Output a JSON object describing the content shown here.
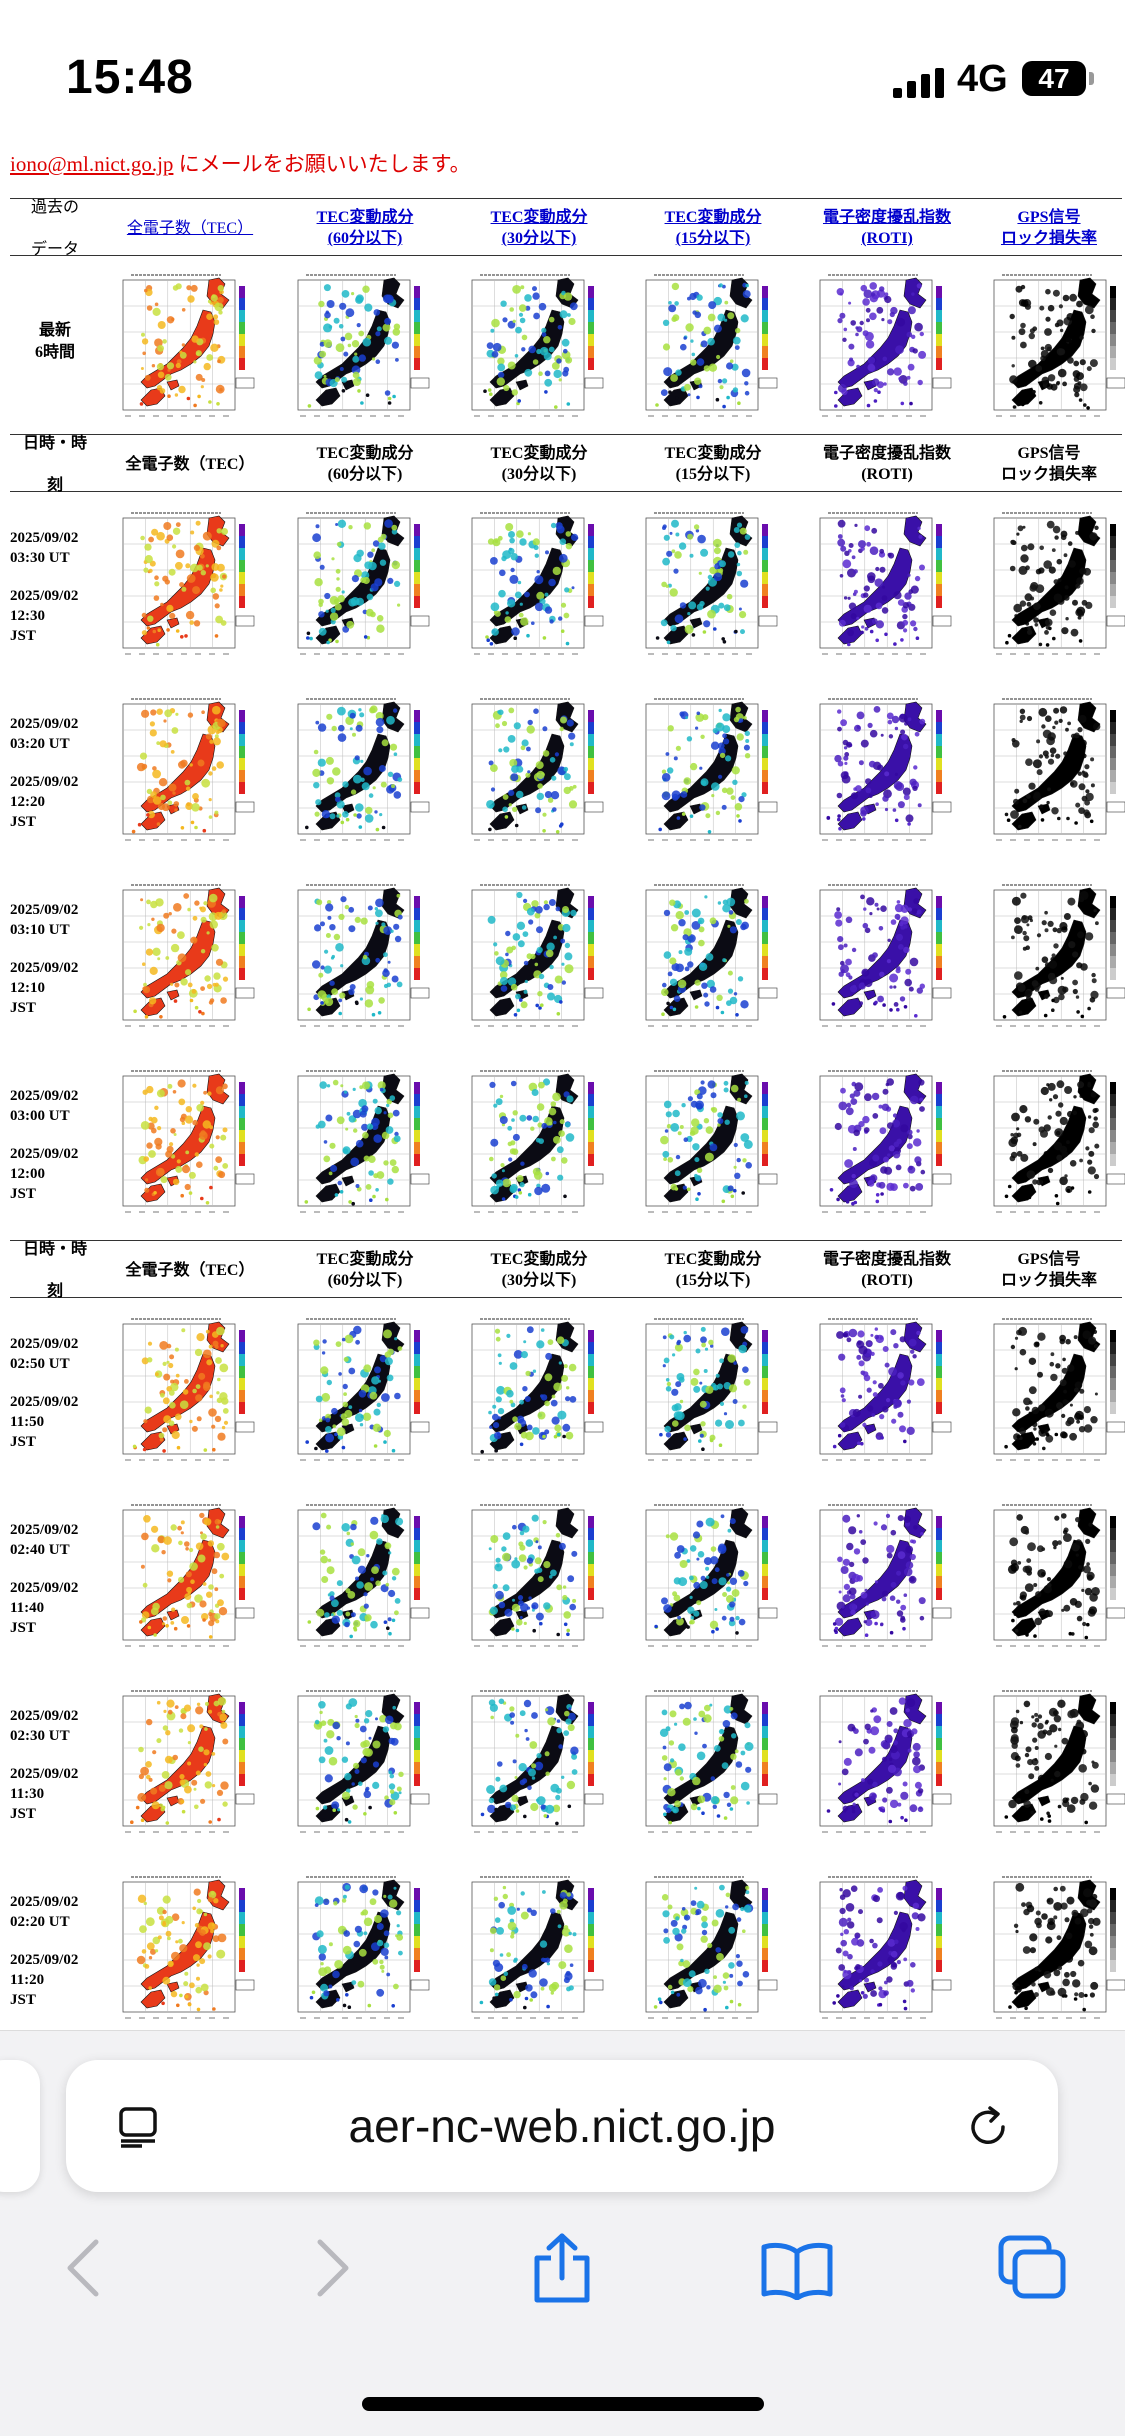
{
  "status_bar": {
    "time": "15:48",
    "network": "4G",
    "battery": "47"
  },
  "notice": {
    "email": "iono@ml.nict.go.jp",
    "text": "にメールをお願いいたします。"
  },
  "header": {
    "col0": [
      "過去の",
      "データ"
    ],
    "cols": [
      {
        "line1": "全電子数（TEC）",
        "line2": "",
        "link": true
      },
      {
        "line1": "TEC変動成分",
        "line2": "(60分以下)",
        "link": true
      },
      {
        "line1": "TEC変動成分",
        "line2": "(30分以下)",
        "link": true
      },
      {
        "line1": "TEC変動成分",
        "line2": "(15分以下)",
        "link": true
      },
      {
        "line1": "電子密度擾乱指数",
        "line2": "(ROTI)",
        "link": true
      },
      {
        "line1": "GPS信号",
        "line2": "ロック損失率",
        "link": true
      }
    ]
  },
  "subheader": {
    "col0": [
      "日時・時",
      "刻"
    ],
    "cols": [
      {
        "line1": "全電子数（TEC）",
        "line2": ""
      },
      {
        "line1": "TEC変動成分",
        "line2": "(60分以下)"
      },
      {
        "line1": "TEC変動成分",
        "line2": "(30分以下)"
      },
      {
        "line1": "TEC変動成分",
        "line2": "(15分以下)"
      },
      {
        "line1": "電子密度擾乱指数",
        "line2": "(ROTI)"
      },
      {
        "line1": "GPS信号",
        "line2": "ロック損失率"
      }
    ]
  },
  "latest_label": [
    "最新",
    "6時間"
  ],
  "rows": [
    {
      "date_ut": "2025/09/02",
      "ut": "03:30 UT",
      "date_jst": "2025/09/02",
      "jst1": "12:30",
      "jst2": "JST"
    },
    {
      "date_ut": "2025/09/02",
      "ut": "03:20 UT",
      "date_jst": "2025/09/02",
      "jst1": "12:20",
      "jst2": "JST"
    },
    {
      "date_ut": "2025/09/02",
      "ut": "03:10 UT",
      "date_jst": "2025/09/02",
      "jst1": "12:10",
      "jst2": "JST"
    },
    {
      "date_ut": "2025/09/02",
      "ut": "03:00 UT",
      "date_jst": "2025/09/02",
      "jst1": "12:00",
      "jst2": "JST"
    },
    {
      "date_ut": "2025/09/02",
      "ut": "02:50 UT",
      "date_jst": "2025/09/02",
      "jst1": "11:50",
      "jst2": "JST"
    },
    {
      "date_ut": "2025/09/02",
      "ut": "02:40 UT",
      "date_jst": "2025/09/02",
      "jst1": "11:40",
      "jst2": "JST"
    },
    {
      "date_ut": "2025/09/02",
      "ut": "02:30 UT",
      "date_jst": "2025/09/02",
      "jst1": "11:30",
      "jst2": "JST"
    },
    {
      "date_ut": "2025/09/02",
      "ut": "02:20 UT",
      "date_jst": "2025/09/02",
      "jst1": "11:20",
      "jst2": "JST"
    }
  ],
  "map_palettes": {
    "tec": [
      "#e83a1a",
      "#f07a20",
      "#f5b820",
      "#c8e040"
    ],
    "dtec": [
      "#0b0b14",
      "#1a3fd0",
      "#20b8c8",
      "#a8e040"
    ],
    "roti": [
      "#3a10a8",
      "#4a1ec0",
      "#5a2cd0",
      "#3408a0"
    ],
    "lol": [
      "#000000",
      "#0a0a0a",
      "#141414",
      "#000000"
    ]
  },
  "browser": {
    "url": "aer-nc-web.nict.go.jp"
  }
}
